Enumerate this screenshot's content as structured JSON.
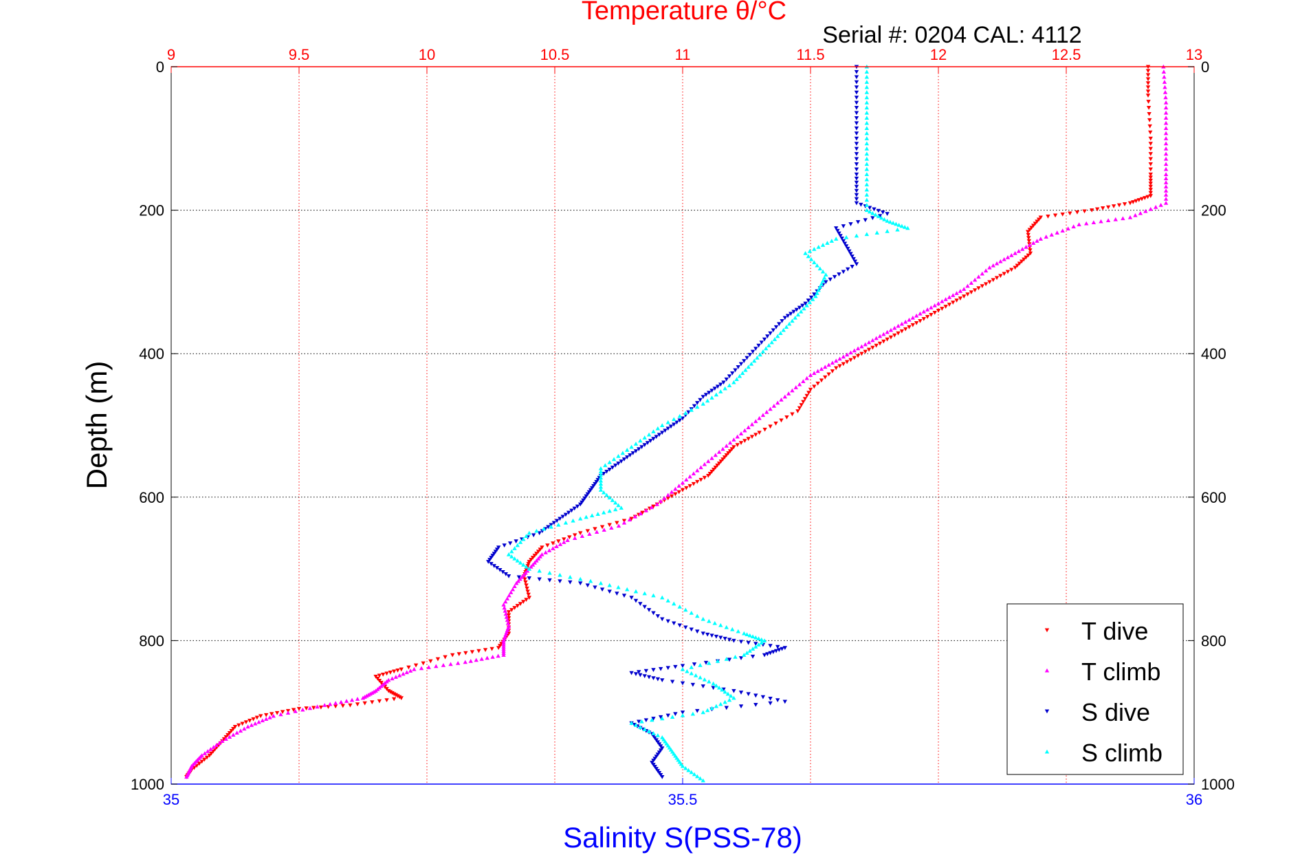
{
  "chart_data": {
    "type": "scatter",
    "title": "Temperature θ/°C",
    "subtitle": "Serial #: 0204  CAL: 4112",
    "xlabel_bottom": "Salinity S(PSS-78)",
    "ylabel": "Depth (m)",
    "y_ticks": [
      "0",
      "200",
      "400",
      "600",
      "800",
      "1000"
    ],
    "y_tick_values": [
      0,
      200,
      400,
      600,
      800,
      1000
    ],
    "ylim": [
      0,
      1000
    ],
    "y_reversed": true,
    "x_top_ticks": [
      "9",
      "9.5",
      "10",
      "10.5",
      "11",
      "11.5",
      "12",
      "12.5",
      "13"
    ],
    "x_top_tick_values": [
      9,
      9.5,
      10,
      10.5,
      11,
      11.5,
      12,
      12.5,
      13
    ],
    "xlim_top": [
      9,
      13
    ],
    "x_bottom_ticks": [
      "35",
      "35.5",
      "36"
    ],
    "x_bottom_tick_values": [
      35,
      35.5,
      36
    ],
    "xlim_bottom": [
      35,
      36
    ],
    "grid": true,
    "legend_position": "bottom-right",
    "colors": {
      "top_axis": "#ff0000",
      "bottom_axis": "#0000ff",
      "t_dive": "#ff0000",
      "t_climb": "#ff00ff",
      "s_dive": "#0000cd",
      "s_climb": "#00ffff",
      "grid": "#000000"
    },
    "series": [
      {
        "name": "T dive",
        "axis": "top",
        "marker": "triangle-down",
        "color": "#ff0000",
        "points": [
          [
            12.82,
            0
          ],
          [
            12.82,
            40
          ],
          [
            12.83,
            100
          ],
          [
            12.83,
            150
          ],
          [
            12.83,
            180
          ],
          [
            12.75,
            190
          ],
          [
            12.6,
            200
          ],
          [
            12.4,
            210
          ],
          [
            12.35,
            230
          ],
          [
            12.36,
            260
          ],
          [
            12.3,
            280
          ],
          [
            12.2,
            300
          ],
          [
            12.1,
            320
          ],
          [
            12.0,
            340
          ],
          [
            11.9,
            360
          ],
          [
            11.8,
            380
          ],
          [
            11.7,
            400
          ],
          [
            11.6,
            420
          ],
          [
            11.5,
            450
          ],
          [
            11.45,
            480
          ],
          [
            11.3,
            510
          ],
          [
            11.2,
            530
          ],
          [
            11.15,
            550
          ],
          [
            11.1,
            570
          ],
          [
            11.0,
            590
          ],
          [
            10.9,
            610
          ],
          [
            10.8,
            630
          ],
          [
            10.6,
            650
          ],
          [
            10.45,
            670
          ],
          [
            10.4,
            690
          ],
          [
            10.38,
            710
          ],
          [
            10.4,
            740
          ],
          [
            10.32,
            760
          ],
          [
            10.32,
            790
          ],
          [
            10.28,
            810
          ],
          [
            10.1,
            820
          ],
          [
            9.9,
            840
          ],
          [
            9.8,
            850
          ],
          [
            9.85,
            870
          ],
          [
            9.9,
            880
          ],
          [
            9.7,
            890
          ],
          [
            9.5,
            895
          ],
          [
            9.35,
            905
          ],
          [
            9.25,
            920
          ],
          [
            9.2,
            940
          ],
          [
            9.15,
            960
          ],
          [
            9.08,
            980
          ],
          [
            9.06,
            990
          ]
        ]
      },
      {
        "name": "T climb",
        "axis": "top",
        "marker": "triangle-up",
        "color": "#ff00ff",
        "points": [
          [
            12.88,
            0
          ],
          [
            12.89,
            50
          ],
          [
            12.89,
            100
          ],
          [
            12.89,
            150
          ],
          [
            12.89,
            190
          ],
          [
            12.75,
            210
          ],
          [
            12.55,
            220
          ],
          [
            12.4,
            240
          ],
          [
            12.3,
            260
          ],
          [
            12.2,
            280
          ],
          [
            12.1,
            310
          ],
          [
            12.0,
            330
          ],
          [
            11.9,
            350
          ],
          [
            11.8,
            370
          ],
          [
            11.7,
            390
          ],
          [
            11.6,
            410
          ],
          [
            11.5,
            430
          ],
          [
            11.4,
            460
          ],
          [
            11.3,
            490
          ],
          [
            11.2,
            520
          ],
          [
            11.1,
            550
          ],
          [
            11.0,
            580
          ],
          [
            10.9,
            610
          ],
          [
            10.75,
            640
          ],
          [
            10.55,
            660
          ],
          [
            10.45,
            680
          ],
          [
            10.4,
            700
          ],
          [
            10.35,
            720
          ],
          [
            10.3,
            750
          ],
          [
            10.32,
            780
          ],
          [
            10.3,
            800
          ],
          [
            10.3,
            820
          ],
          [
            10.15,
            830
          ],
          [
            9.95,
            840
          ],
          [
            9.85,
            855
          ],
          [
            9.8,
            870
          ],
          [
            9.75,
            880
          ],
          [
            9.6,
            890
          ],
          [
            9.4,
            905
          ],
          [
            9.3,
            920
          ],
          [
            9.2,
            940
          ],
          [
            9.12,
            960
          ],
          [
            9.08,
            975
          ],
          [
            9.06,
            990
          ]
        ]
      },
      {
        "name": "S dive",
        "axis": "bottom",
        "marker": "triangle-down",
        "color": "#0000cd",
        "points": [
          [
            35.67,
            0
          ],
          [
            35.67,
            50
          ],
          [
            35.67,
            100
          ],
          [
            35.67,
            150
          ],
          [
            35.67,
            190
          ],
          [
            35.7,
            205
          ],
          [
            35.65,
            225
          ],
          [
            35.66,
            250
          ],
          [
            35.67,
            275
          ],
          [
            35.64,
            300
          ],
          [
            35.62,
            330
          ],
          [
            35.6,
            350
          ],
          [
            35.58,
            380
          ],
          [
            35.56,
            410
          ],
          [
            35.54,
            440
          ],
          [
            35.52,
            460
          ],
          [
            35.5,
            490
          ],
          [
            35.48,
            510
          ],
          [
            35.46,
            530
          ],
          [
            35.44,
            550
          ],
          [
            35.42,
            570
          ],
          [
            35.41,
            590
          ],
          [
            35.4,
            610
          ],
          [
            35.38,
            630
          ],
          [
            35.36,
            650
          ],
          [
            35.32,
            670
          ],
          [
            35.31,
            690
          ],
          [
            35.33,
            710
          ],
          [
            35.4,
            720
          ],
          [
            35.45,
            740
          ],
          [
            35.48,
            770
          ],
          [
            35.52,
            790
          ],
          [
            35.55,
            800
          ],
          [
            35.6,
            810
          ],
          [
            35.58,
            820
          ],
          [
            35.5,
            835
          ],
          [
            35.45,
            845
          ],
          [
            35.48,
            855
          ],
          [
            35.55,
            870
          ],
          [
            35.6,
            885
          ],
          [
            35.5,
            900
          ],
          [
            35.45,
            915
          ],
          [
            35.47,
            930
          ],
          [
            35.48,
            950
          ],
          [
            35.47,
            970
          ],
          [
            35.48,
            990
          ]
        ]
      },
      {
        "name": "S climb",
        "axis": "bottom",
        "marker": "triangle-up",
        "color": "#00ffff",
        "points": [
          [
            35.68,
            0
          ],
          [
            35.68,
            50
          ],
          [
            35.68,
            100
          ],
          [
            35.68,
            150
          ],
          [
            35.68,
            200
          ],
          [
            35.7,
            215
          ],
          [
            35.72,
            225
          ],
          [
            35.65,
            240
          ],
          [
            35.62,
            260
          ],
          [
            35.64,
            290
          ],
          [
            35.63,
            320
          ],
          [
            35.61,
            350
          ],
          [
            35.59,
            380
          ],
          [
            35.57,
            410
          ],
          [
            35.55,
            440
          ],
          [
            35.52,
            470
          ],
          [
            35.48,
            500
          ],
          [
            35.45,
            530
          ],
          [
            35.42,
            560
          ],
          [
            35.42,
            590
          ],
          [
            35.44,
            615
          ],
          [
            35.4,
            630
          ],
          [
            35.35,
            650
          ],
          [
            35.33,
            680
          ],
          [
            35.35,
            700
          ],
          [
            35.42,
            720
          ],
          [
            35.48,
            740
          ],
          [
            35.52,
            770
          ],
          [
            35.56,
            790
          ],
          [
            35.58,
            800
          ],
          [
            35.56,
            820
          ],
          [
            35.5,
            840
          ],
          [
            35.53,
            860
          ],
          [
            35.55,
            880
          ],
          [
            35.52,
            900
          ],
          [
            35.45,
            915
          ],
          [
            35.48,
            935
          ],
          [
            35.49,
            955
          ],
          [
            35.5,
            975
          ],
          [
            35.52,
            995
          ]
        ]
      }
    ]
  }
}
